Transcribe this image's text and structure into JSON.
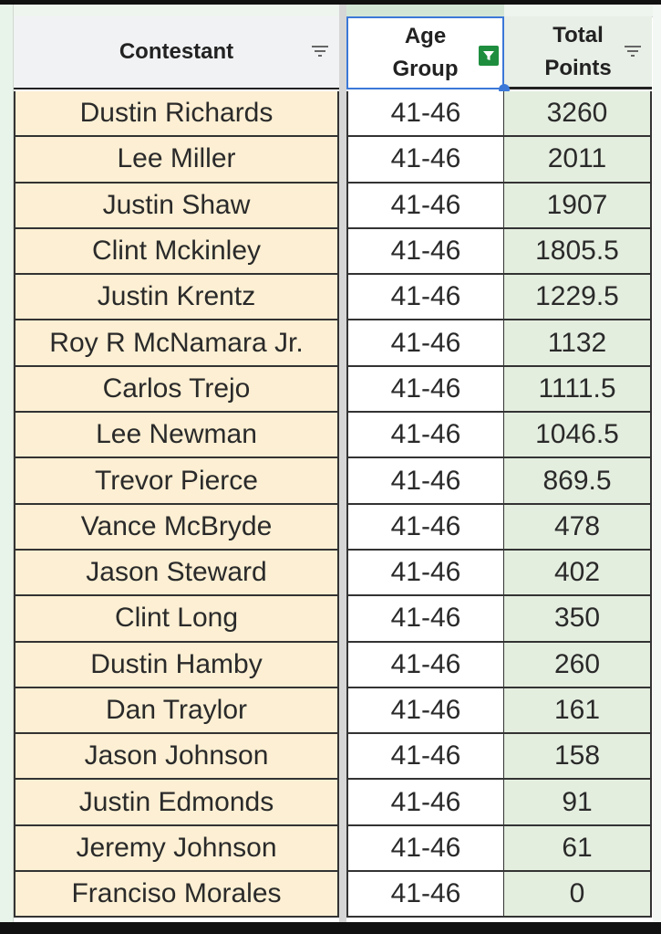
{
  "headers": {
    "contestant": "Contestant",
    "age_group_line1": "Age",
    "age_group_line2": "Group",
    "total_points_line1": "Total",
    "total_points_line2": "Points"
  },
  "active_filter_column": "Age Group",
  "colors": {
    "filter_active": "#1e8e3e",
    "selection": "#3b78d8",
    "contestant_fill": "#fcefd3",
    "points_fill": "#e4eedf"
  },
  "rows": [
    {
      "name": "Dustin Richards",
      "age": "41-46",
      "points": "3260"
    },
    {
      "name": "Lee Miller",
      "age": "41-46",
      "points": "2011"
    },
    {
      "name": "Justin Shaw",
      "age": "41-46",
      "points": "1907"
    },
    {
      "name": "Clint Mckinley",
      "age": "41-46",
      "points": "1805.5"
    },
    {
      "name": "Justin Krentz",
      "age": "41-46",
      "points": "1229.5"
    },
    {
      "name": "Roy R McNamara Jr.",
      "age": "41-46",
      "points": "1132"
    },
    {
      "name": "Carlos Trejo",
      "age": "41-46",
      "points": "1111.5"
    },
    {
      "name": "Lee Newman",
      "age": "41-46",
      "points": "1046.5"
    },
    {
      "name": "Trevor Pierce",
      "age": "41-46",
      "points": "869.5"
    },
    {
      "name": "Vance McBryde",
      "age": "41-46",
      "points": "478"
    },
    {
      "name": "Jason Steward",
      "age": "41-46",
      "points": "402"
    },
    {
      "name": "Clint Long",
      "age": "41-46",
      "points": "350"
    },
    {
      "name": "Dustin Hamby",
      "age": "41-46",
      "points": "260"
    },
    {
      "name": "Dan Traylor",
      "age": "41-46",
      "points": "161"
    },
    {
      "name": "Jason Johnson",
      "age": "41-46",
      "points": "158"
    },
    {
      "name": "Justin Edmonds",
      "age": "41-46",
      "points": "91"
    },
    {
      "name": "Jeremy Johnson",
      "age": "41-46",
      "points": "61"
    },
    {
      "name": "Franciso Morales",
      "age": "41-46",
      "points": "0"
    }
  ]
}
